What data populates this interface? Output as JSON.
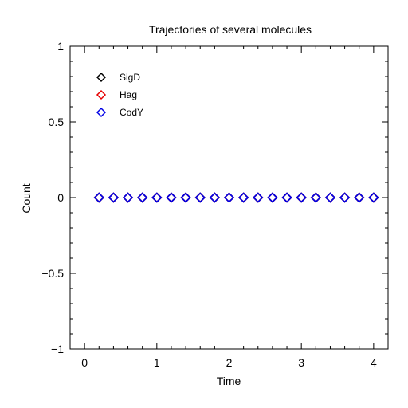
{
  "chart_data": {
    "type": "scatter",
    "title": "Trajectories of several molecules",
    "xlabel": "Time",
    "ylabel": "Count",
    "xlim": [
      -0.2,
      4.2
    ],
    "ylim": [
      -1,
      1
    ],
    "xticks": [
      0,
      1,
      2,
      3,
      4
    ],
    "xtick_labels": [
      "0",
      "1",
      "2",
      "3",
      "4"
    ],
    "yticks": [
      1,
      0.5,
      0,
      -0.5,
      -1
    ],
    "ytick_labels": [
      "1",
      "0.5",
      "0",
      "−0.5",
      "−1"
    ],
    "grid": false,
    "legend_position": "top-left",
    "marker": "diamond-open",
    "x": [
      0.2,
      0.4,
      0.6,
      0.8,
      1.0,
      1.2,
      1.4,
      1.6,
      1.8,
      2.0,
      2.2,
      2.4,
      2.6,
      2.8,
      3.0,
      3.2,
      3.4,
      3.6,
      3.8,
      4.0
    ],
    "series": [
      {
        "name": "SigD",
        "color": "#000000",
        "values": [
          0,
          0,
          0,
          0,
          0,
          0,
          0,
          0,
          0,
          0,
          0,
          0,
          0,
          0,
          0,
          0,
          0,
          0,
          0,
          0
        ]
      },
      {
        "name": "Hag",
        "color": "#e60000",
        "values": [
          0,
          0,
          0,
          0,
          0,
          0,
          0,
          0,
          0,
          0,
          0,
          0,
          0,
          0,
          0,
          0,
          0,
          0,
          0,
          0
        ]
      },
      {
        "name": "CodY",
        "color": "#0000e6",
        "values": [
          0,
          0,
          0,
          0,
          0,
          0,
          0,
          0,
          0,
          0,
          0,
          0,
          0,
          0,
          0,
          0,
          0,
          0,
          0,
          0
        ]
      }
    ]
  }
}
